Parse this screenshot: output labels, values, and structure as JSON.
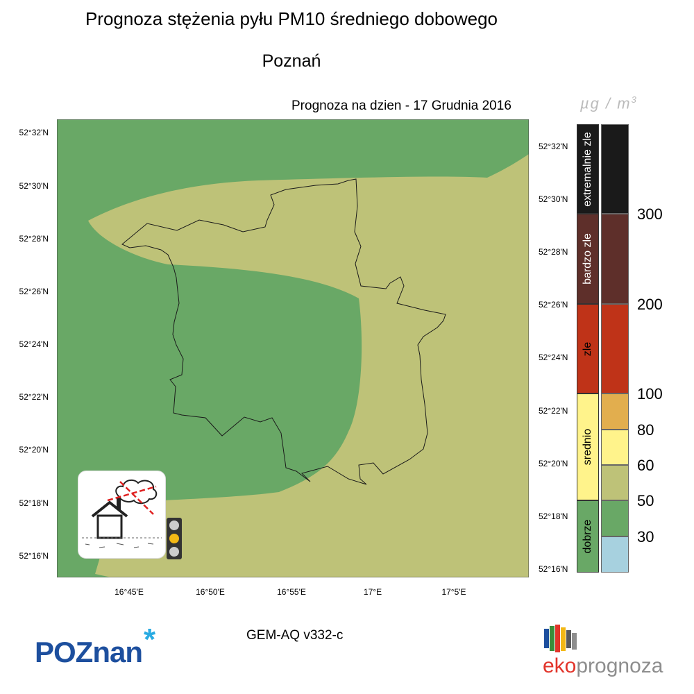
{
  "title": "Prognoza stężenia pyłu PM10 średniego dobowego",
  "city": "Poznań",
  "forecast_date": "Prognoza na dzien -  17 Grudnia 2016",
  "unit": "µg / m",
  "unit_sup": "3",
  "model": "GEM-AQ v332-c",
  "lat_labels_left": [
    "52°32'N",
    "52°30'N",
    "52°28'N",
    "52°26'N",
    "52°24'N",
    "52°22'N",
    "52°20'N",
    "52°18'N",
    "52°16'N"
  ],
  "lat_labels_right": [
    "52°32'N",
    "52°30'N",
    "52°28'N",
    "52°26'N",
    "52°24'N",
    "52°22'N",
    "52°20'N",
    "52°18'N",
    "52°16'N"
  ],
  "lon_labels": [
    "16°45'E",
    "16°50'E",
    "16°55'E",
    "17°E",
    "17°5'E"
  ],
  "categories": [
    {
      "label": "extremalnie zle",
      "color": "#1a1a1a",
      "text_color": "#ffffff"
    },
    {
      "label": "bardzo zle",
      "color": "#5e2f2a",
      "text_color": "#ffffff"
    },
    {
      "label": "zle",
      "color": "#bf3318",
      "text_color": "#000000"
    },
    {
      "label": "srednio",
      "color": "#fff38b",
      "text_color": "#000000"
    },
    {
      "label": "dobrze",
      "color": "#69a866",
      "text_color": "#000000"
    }
  ],
  "scale_colors": [
    "#1a1a1a",
    "#5e2f2a",
    "#bf3318",
    "#e2ae4e",
    "#fff38b",
    "#bec278",
    "#69a866",
    "#a7d1df"
  ],
  "scale_ticks": [
    "300",
    "200",
    "100",
    "80",
    "60",
    "50",
    "30"
  ],
  "map_colors": {
    "good": "#69a866",
    "moderate": "#bec278"
  },
  "traffic_light_active": "#f3b815",
  "logo_left": "POZnan",
  "logo_left_star": "*",
  "logo_right_prefix": "eko",
  "logo_right_suffix": "prognoza",
  "logo_right_colors": [
    "#e2342a",
    "#8e8e8e"
  ]
}
